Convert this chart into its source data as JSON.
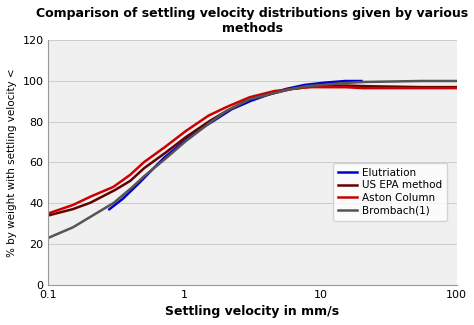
{
  "title": "Comparison of settling velocity distributions given by various\nmethods",
  "xlabel": "Settling velocity in mm/s",
  "ylabel": "% by weight with settling velocity <",
  "xlim": [
    0.1,
    100
  ],
  "ylim": [
    0,
    120
  ],
  "yticks": [
    0,
    20,
    40,
    60,
    80,
    100,
    120
  ],
  "background_color": "#f0f0f0",
  "fig_background": "#ffffff",
  "series": [
    {
      "name": "Elutriation",
      "color": "#0000cc",
      "lw": 1.8,
      "x": [
        0.28,
        0.35,
        0.45,
        0.55,
        0.7,
        0.9,
        1.2,
        1.6,
        2.2,
        3.0,
        4.0,
        5.5,
        7.5,
        10.0,
        15.0,
        20.0
      ],
      "y": [
        37,
        42,
        49,
        55,
        62,
        68,
        75,
        80,
        86,
        90,
        93,
        96,
        98,
        99,
        100,
        100
      ]
    },
    {
      "name": "US EPA method",
      "color": "#660000",
      "lw": 1.8,
      "x": [
        0.1,
        0.15,
        0.2,
        0.3,
        0.4,
        0.5,
        0.7,
        1.0,
        1.5,
        2.0,
        3.0,
        4.5,
        6.0,
        8.0,
        10.0,
        15.0,
        20.0,
        50.0,
        100.0
      ],
      "y": [
        34,
        37,
        40,
        46,
        51,
        57,
        64,
        72,
        80,
        85,
        91,
        94,
        96,
        97,
        97.5,
        97.8,
        97.5,
        97,
        97
      ]
    },
    {
      "name": "Aston Column",
      "color": "#cc0000",
      "lw": 1.8,
      "x": [
        0.1,
        0.15,
        0.2,
        0.3,
        0.4,
        0.5,
        0.7,
        1.0,
        1.5,
        2.0,
        3.0,
        4.5,
        6.0,
        8.0,
        10.0,
        15.0,
        20.0,
        50.0,
        100.0
      ],
      "y": [
        35,
        39,
        43,
        48,
        54,
        60,
        67,
        75,
        83,
        87,
        92,
        95,
        96,
        97,
        97,
        97,
        96.5,
        96.5,
        96.5
      ]
    },
    {
      "name": "Brombach(1)",
      "color": "#555555",
      "lw": 1.8,
      "x": [
        0.1,
        0.15,
        0.2,
        0.3,
        0.4,
        0.5,
        0.7,
        1.0,
        1.5,
        2.0,
        3.0,
        4.5,
        6.0,
        8.0,
        10.0,
        15.0,
        20.0,
        50.0,
        100.0
      ],
      "y": [
        23,
        28,
        33,
        40,
        47,
        53,
        61,
        70,
        79,
        85,
        91,
        94,
        96,
        97.5,
        98,
        99,
        99.5,
        100,
        100
      ]
    }
  ]
}
